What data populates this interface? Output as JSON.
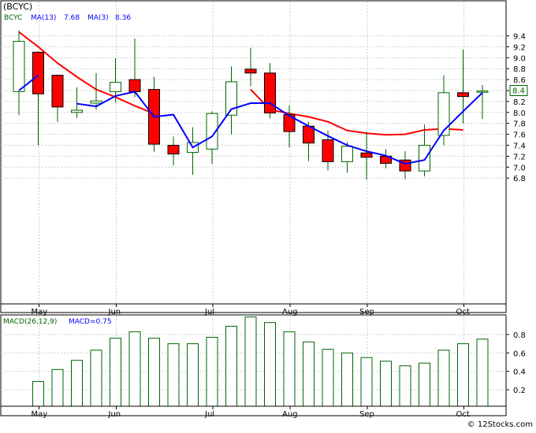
{
  "chart_data": [
    {
      "type": "candlestick",
      "ticker": "(BCYC)",
      "legend": {
        "symbol": "BCYC",
        "ma13_label": "MA(13)",
        "ma13_value": "7.68",
        "ma3_label": "MA(3)",
        "ma3_value": "8.36"
      },
      "last_price_label": "8.4",
      "last_price": 8.4,
      "ylim": [
        6.7,
        9.6
      ],
      "yticks": [
        6.8,
        7.0,
        7.2,
        7.4,
        7.6,
        7.8,
        8.0,
        8.2,
        8.4,
        8.6,
        8.8,
        9.0,
        9.2,
        9.4
      ],
      "ytick_labels": [
        "6.8",
        "7.0",
        "7.2",
        "7.4",
        "7.6",
        "7.8",
        "8.0",
        "8.2",
        "8.4",
        "8.6",
        "8.8",
        "9.0",
        "9.2",
        "9.4"
      ],
      "grid": true,
      "month_ticks": [
        {
          "label": "May",
          "index": 1
        },
        {
          "label": "Jun",
          "index": 5
        },
        {
          "label": "Jul",
          "index": 10
        },
        {
          "label": "Aug",
          "index": 14
        },
        {
          "label": "Sep",
          "index": 18
        },
        {
          "label": "Oct",
          "index": 23
        }
      ],
      "candles": [
        {
          "open": 8.38,
          "high": 9.5,
          "low": 7.95,
          "close": 9.3
        },
        {
          "open": 9.1,
          "high": 9.12,
          "low": 7.4,
          "close": 8.34
        },
        {
          "open": 8.68,
          "high": 8.68,
          "low": 7.83,
          "close": 8.1
        },
        {
          "open": 8.0,
          "high": 8.46,
          "low": 7.9,
          "close": 8.04
        },
        {
          "open": 8.17,
          "high": 8.72,
          "low": 8.05,
          "close": 8.21
        },
        {
          "open": 8.38,
          "high": 8.99,
          "low": 8.18,
          "close": 8.55
        },
        {
          "open": 8.6,
          "high": 9.35,
          "low": 8.28,
          "close": 8.38
        },
        {
          "open": 8.42,
          "high": 8.65,
          "low": 7.28,
          "close": 7.42
        },
        {
          "open": 7.4,
          "high": 7.56,
          "low": 7.03,
          "close": 7.24
        },
        {
          "open": 7.27,
          "high": 7.73,
          "low": 6.86,
          "close": 7.45
        },
        {
          "open": 7.33,
          "high": 8.02,
          "low": 7.06,
          "close": 7.98
        },
        {
          "open": 7.95,
          "high": 8.84,
          "low": 7.6,
          "close": 8.56
        },
        {
          "open": 8.79,
          "high": 9.18,
          "low": 8.48,
          "close": 8.72
        },
        {
          "open": 8.72,
          "high": 8.9,
          "low": 7.89,
          "close": 7.99
        },
        {
          "open": 7.96,
          "high": 8.13,
          "low": 7.36,
          "close": 7.65
        },
        {
          "open": 7.75,
          "high": 7.83,
          "low": 7.11,
          "close": 7.44
        },
        {
          "open": 7.5,
          "high": 7.67,
          "low": 6.94,
          "close": 7.1
        },
        {
          "open": 7.1,
          "high": 7.46,
          "low": 6.9,
          "close": 7.38
        },
        {
          "open": 7.26,
          "high": 7.64,
          "low": 6.77,
          "close": 7.18
        },
        {
          "open": 7.2,
          "high": 7.33,
          "low": 6.98,
          "close": 7.07
        },
        {
          "open": 7.13,
          "high": 7.29,
          "low": 6.78,
          "close": 6.93
        },
        {
          "open": 6.93,
          "high": 7.78,
          "low": 6.83,
          "close": 7.4
        },
        {
          "open": 7.58,
          "high": 8.68,
          "low": 7.4,
          "close": 8.36
        },
        {
          "open": 8.36,
          "high": 9.15,
          "low": 7.8,
          "close": 8.29
        },
        {
          "open": 8.39,
          "high": 8.5,
          "low": 7.88,
          "close": 8.39
        }
      ],
      "ma13": [
        9.47,
        9.2,
        8.9,
        8.65,
        8.42,
        8.28,
        8.12,
        7.98,
        null,
        null,
        null,
        null,
        8.42,
        8.05,
        7.98,
        7.92,
        7.83,
        7.67,
        7.62,
        7.59,
        7.6,
        7.68,
        7.7,
        7.68,
        null
      ],
      "ma3": [
        8.4,
        8.68,
        null,
        8.16,
        8.11,
        8.3,
        8.38,
        7.92,
        7.96,
        7.36,
        7.56,
        8.06,
        8.17,
        8.17,
        7.94,
        7.75,
        7.57,
        7.4,
        7.29,
        7.21,
        7.06,
        7.13,
        7.67,
        8.02,
        8.36
      ],
      "ma_index_offset": 1,
      "colors": {
        "up": "#ffffff",
        "down": "#ff0000",
        "outline": "#000000",
        "wick": "#006400",
        "ma13": "#ff0000",
        "ma3": "#0000ff"
      }
    },
    {
      "type": "bar",
      "title": "MACD(26,12,9)",
      "value_label": "MACD=0.75",
      "ylim": [
        0.0,
        1.0
      ],
      "yticks": [
        0.2,
        0.4,
        0.6,
        0.8
      ],
      "ytick_labels": [
        "0.2",
        "0.4",
        "0.6",
        "0.8"
      ],
      "values": [
        null,
        0.29,
        0.42,
        0.52,
        0.63,
        0.76,
        0.83,
        0.76,
        0.7,
        0.7,
        0.77,
        0.89,
        0.99,
        0.93,
        0.83,
        0.72,
        0.64,
        0.6,
        0.55,
        0.51,
        0.46,
        0.49,
        0.63,
        0.7,
        0.75
      ],
      "month_ticks": [
        {
          "label": "May",
          "index": 1
        },
        {
          "label": "Jun",
          "index": 5
        },
        {
          "label": "Jul",
          "index": 10
        },
        {
          "label": "Aug",
          "index": 14
        },
        {
          "label": "Sep",
          "index": 18
        },
        {
          "label": "Oct",
          "index": 23
        }
      ],
      "colors": {
        "bar_outline": "#006400",
        "bar_fill": "#ffffff"
      }
    }
  ],
  "footer": {
    "copyright": "© 12Stocks.com"
  }
}
